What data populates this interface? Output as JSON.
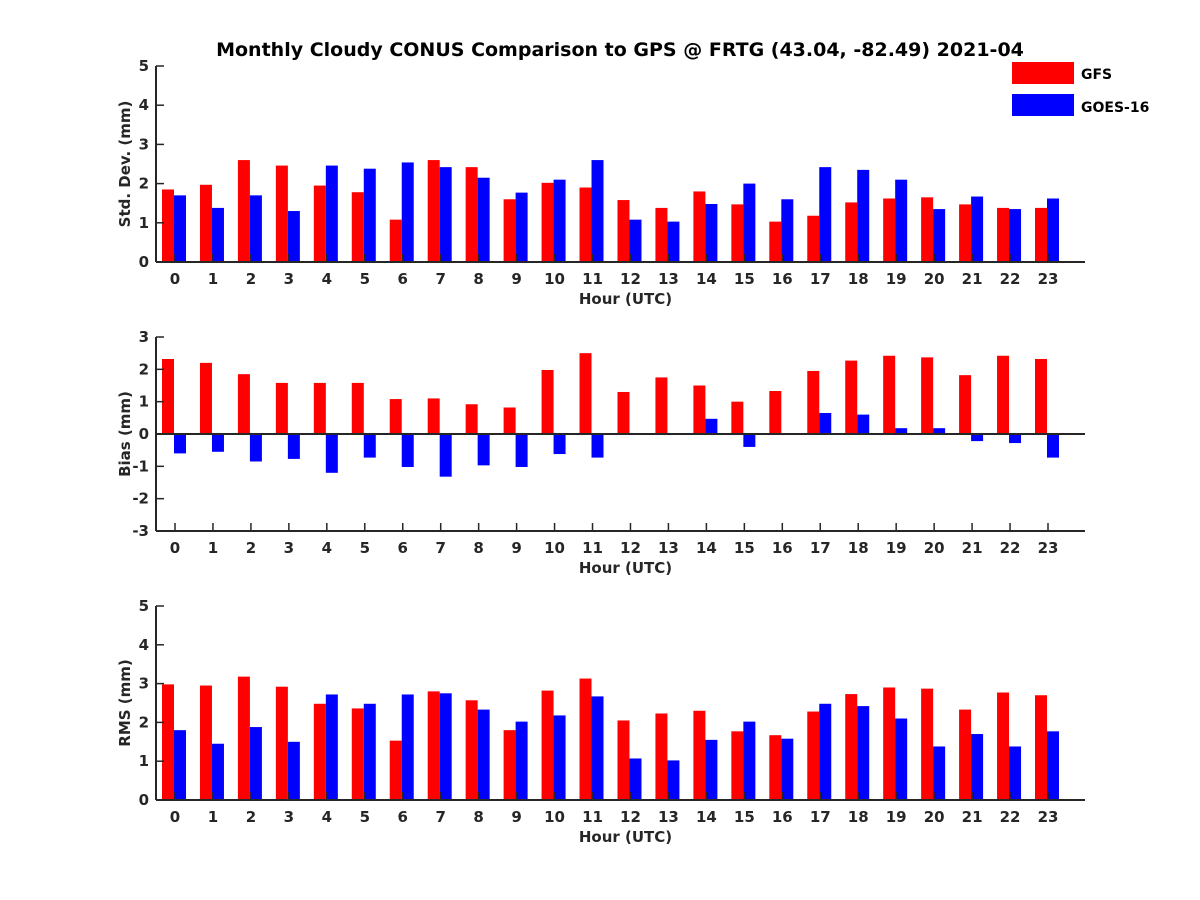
{
  "title": "Monthly Cloudy CONUS Comparison to GPS @ FRTG (43.04, -82.49) 2021-04",
  "colors": {
    "GFS": "#ff0000",
    "GOES-16": "#0000ff"
  },
  "legend": {
    "entries": [
      "GFS",
      "GOES-16"
    ],
    "placement": "top-right"
  },
  "chart_data": [
    {
      "type": "bar",
      "xlabel": "Hour (UTC)",
      "ylabel": "Std. Dev. (mm)",
      "ylim": [
        0,
        5
      ],
      "yticks": [
        0,
        1,
        2,
        3,
        4,
        5
      ],
      "categories": [
        "0",
        "1",
        "2",
        "3",
        "4",
        "5",
        "6",
        "7",
        "8",
        "9",
        "10",
        "11",
        "12",
        "13",
        "14",
        "15",
        "16",
        "17",
        "18",
        "19",
        "20",
        "21",
        "22",
        "23"
      ],
      "series": [
        {
          "name": "GFS",
          "values": [
            1.85,
            1.97,
            2.6,
            2.46,
            1.95,
            1.78,
            1.08,
            2.6,
            2.42,
            1.6,
            2.02,
            1.9,
            1.58,
            1.38,
            1.8,
            1.47,
            1.03,
            1.18,
            1.52,
            1.62,
            1.65,
            1.47,
            1.38,
            1.38
          ]
        },
        {
          "name": "GOES-16",
          "values": [
            1.7,
            1.38,
            1.7,
            1.3,
            2.46,
            2.38,
            2.54,
            2.42,
            2.15,
            1.77,
            2.1,
            2.6,
            1.08,
            1.03,
            1.48,
            2.0,
            1.6,
            2.42,
            2.35,
            2.1,
            1.35,
            1.67,
            1.35,
            1.62
          ]
        }
      ]
    },
    {
      "type": "bar",
      "xlabel": "Hour (UTC)",
      "ylabel": "Bias (mm)",
      "ylim": [
        -3,
        3
      ],
      "yticks": [
        -3,
        -2,
        -1,
        0,
        1,
        2,
        3
      ],
      "categories": [
        "0",
        "1",
        "2",
        "3",
        "4",
        "5",
        "6",
        "7",
        "8",
        "9",
        "10",
        "11",
        "12",
        "13",
        "14",
        "15",
        "16",
        "17",
        "18",
        "19",
        "20",
        "21",
        "22",
        "23"
      ],
      "series": [
        {
          "name": "GFS",
          "values": [
            2.32,
            2.2,
            1.85,
            1.58,
            1.58,
            1.58,
            1.08,
            1.1,
            0.92,
            0.82,
            1.98,
            2.5,
            1.3,
            1.75,
            1.5,
            1.0,
            1.33,
            1.95,
            2.27,
            2.42,
            2.37,
            1.82,
            2.42,
            2.32
          ]
        },
        {
          "name": "GOES-16",
          "values": [
            -0.6,
            -0.55,
            -0.85,
            -0.77,
            -1.2,
            -0.73,
            -1.02,
            -1.32,
            -0.97,
            -1.02,
            -0.62,
            -0.73,
            0.03,
            0.0,
            0.47,
            -0.4,
            0.0,
            0.65,
            0.6,
            0.18,
            0.18,
            -0.22,
            -0.28,
            -0.73
          ]
        }
      ]
    },
    {
      "type": "bar",
      "xlabel": "Hour (UTC)",
      "ylabel": "RMS (mm)",
      "ylim": [
        0,
        5
      ],
      "yticks": [
        0,
        1,
        2,
        3,
        4,
        5
      ],
      "categories": [
        "0",
        "1",
        "2",
        "3",
        "4",
        "5",
        "6",
        "7",
        "8",
        "9",
        "10",
        "11",
        "12",
        "13",
        "14",
        "15",
        "16",
        "17",
        "18",
        "19",
        "20",
        "21",
        "22",
        "23"
      ],
      "series": [
        {
          "name": "GFS",
          "values": [
            2.98,
            2.95,
            3.18,
            2.92,
            2.48,
            2.36,
            1.53,
            2.8,
            2.57,
            1.8,
            2.82,
            3.13,
            2.05,
            2.23,
            2.3,
            1.77,
            1.67,
            2.28,
            2.73,
            2.9,
            2.87,
            2.33,
            2.77,
            2.7
          ]
        },
        {
          "name": "GOES-16",
          "values": [
            1.8,
            1.45,
            1.88,
            1.5,
            2.72,
            2.48,
            2.72,
            2.75,
            2.33,
            2.02,
            2.18,
            2.67,
            1.07,
            1.02,
            1.55,
            2.02,
            1.58,
            2.48,
            2.42,
            2.1,
            1.38,
            1.7,
            1.38,
            1.77
          ]
        }
      ]
    }
  ]
}
